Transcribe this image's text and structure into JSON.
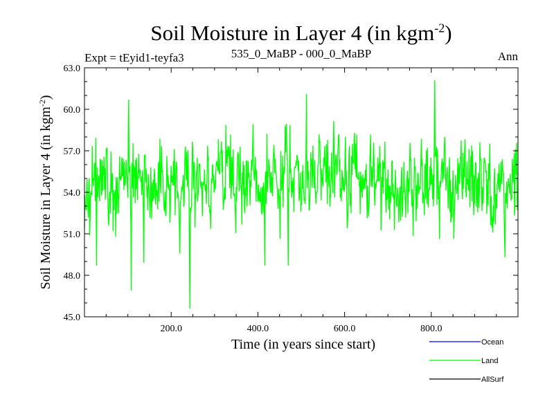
{
  "chart_data": {
    "type": "line",
    "title": "Soil Moisture in Layer 4 (in kgm",
    "title_sup": "-2",
    "title_end": ")",
    "subtitle_left": "Expt = tEyid1-teyfa3",
    "subtitle_center": "535_0_MaBP - 000_0_MaBP",
    "subtitle_right": "Ann",
    "xlabel": "Time (in years since start)",
    "ylabel": "Soil Moisture in Layer 4 (in kgm",
    "ylabel_sup": "-2",
    "ylabel_end": ")",
    "xlim": [
      0,
      1000
    ],
    "ylim": [
      45.0,
      63.0
    ],
    "x_ticks": [
      200,
      400,
      600,
      800
    ],
    "x_tick_labels": [
      "200.0",
      "400.0",
      "600.0",
      "800.0"
    ],
    "y_ticks": [
      45,
      48,
      51,
      54,
      57,
      60,
      63
    ],
    "y_tick_labels": [
      "45.0",
      "48.0",
      "51.0",
      "54.0",
      "57.0",
      "60.0",
      "63.0"
    ],
    "series": [
      {
        "name": "Ocean",
        "color": "#0000ff",
        "values": []
      },
      {
        "name": "Land",
        "color": "#00ff00",
        "mean": 54.6,
        "min": 45.6,
        "max": 62.1,
        "n_points": 1000
      },
      {
        "name": "AllSurf",
        "color": "#000000",
        "values": []
      }
    ],
    "legend_position": "bottom-right",
    "extremes": [
      {
        "x": 108,
        "y": 46.9
      },
      {
        "x": 243,
        "y": 45.6
      },
      {
        "x": 102,
        "y": 60.7
      },
      {
        "x": 512,
        "y": 61.1
      },
      {
        "x": 808,
        "y": 62.1
      },
      {
        "x": 416,
        "y": 48.7
      },
      {
        "x": 470,
        "y": 48.7
      },
      {
        "x": 970,
        "y": 49.3
      },
      {
        "x": 28,
        "y": 48.7
      },
      {
        "x": 137,
        "y": 48.9
      }
    ]
  }
}
